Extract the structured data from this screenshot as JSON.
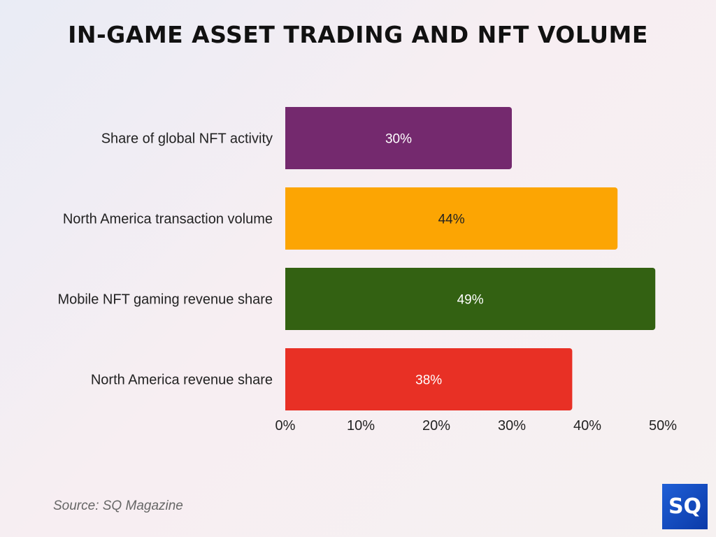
{
  "chart_data": {
    "type": "bar",
    "orientation": "horizontal",
    "title": "IN-GAME ASSET TRADING AND NFT VOLUME",
    "categories": [
      "Share of global NFT activity",
      "North America transaction volume",
      "Mobile NFT gaming revenue share",
      "North America revenue share"
    ],
    "values": [
      30,
      44,
      49,
      38
    ],
    "data_labels": [
      "30%",
      "44%",
      "49%",
      "38%"
    ],
    "colors": [
      "#74296e",
      "#fca503",
      "#336112",
      "#e83025"
    ],
    "label_colors": [
      "#ffffff",
      "#222222",
      "#ffffff",
      "#ffffff"
    ],
    "xlim": [
      0,
      50
    ],
    "xticks": [
      0,
      10,
      20,
      30,
      40,
      50
    ],
    "xtick_labels": [
      "0%",
      "10%",
      "20%",
      "30%",
      "40%",
      "50%"
    ],
    "xlabel": "",
    "ylabel": "",
    "grid": false
  },
  "source": "Source: SQ Magazine",
  "logo_text": "SQ"
}
